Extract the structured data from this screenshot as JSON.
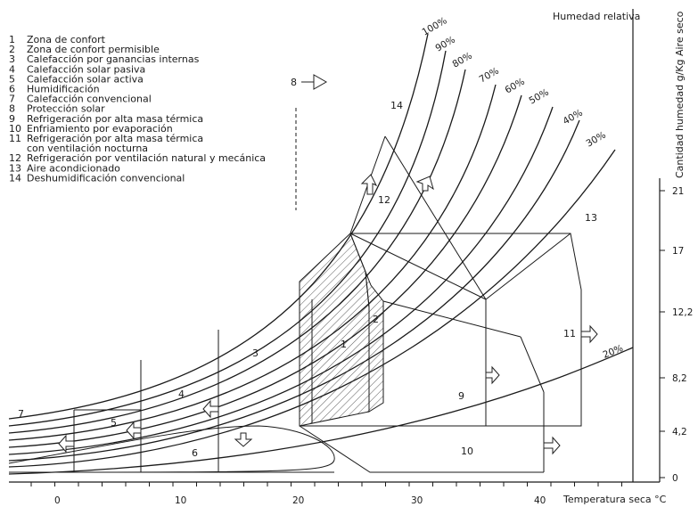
{
  "chart_data": {
    "type": "psychrometric-diagram",
    "title": "Humedad relativa",
    "xlabel": "Temperatura seca °C",
    "ylabel": "Cantidad humedad g/Kg Aire seco",
    "x_ticks": [
      "0",
      "10",
      "20",
      "30",
      "40"
    ],
    "y_ticks": [
      "0",
      "4,2",
      "8,2",
      "12,2",
      "17",
      "21"
    ],
    "rh_curves": [
      "100%",
      "90%",
      "80%",
      "70%",
      "60%",
      "50%",
      "40%",
      "30%",
      "20%"
    ],
    "legend": [
      {
        "num": "1",
        "label": "Zona de confort"
      },
      {
        "num": "2",
        "label": "Zona de confort permisible"
      },
      {
        "num": "3",
        "label": "Calefacción por ganancias internas"
      },
      {
        "num": "4",
        "label": "Calefacción solar pasiva"
      },
      {
        "num": "5",
        "label": "Calefacción solar activa"
      },
      {
        "num": "6",
        "label": "Humidificación"
      },
      {
        "num": "7",
        "label": "Calefacción convencional"
      },
      {
        "num": "8",
        "label": "Protección solar"
      },
      {
        "num": "9",
        "label": "Refrigeración por alta masa térmica"
      },
      {
        "num": "10",
        "label": "Enfriamiento por evaporación"
      },
      {
        "num": "11",
        "label": "Refrigeración por alta masa térmica",
        "label2": "con ventilación nocturna"
      },
      {
        "num": "12",
        "label": "Refrigeración por ventilación natural y mecánica"
      },
      {
        "num": "13",
        "label": "Aire acondicionado"
      },
      {
        "num": "14",
        "label": "Deshumidificación convencional"
      }
    ],
    "zone_numbers": [
      "1",
      "2",
      "3",
      "4",
      "5",
      "6",
      "7",
      "8",
      "9",
      "10",
      "11",
      "12",
      "13",
      "14"
    ]
  }
}
